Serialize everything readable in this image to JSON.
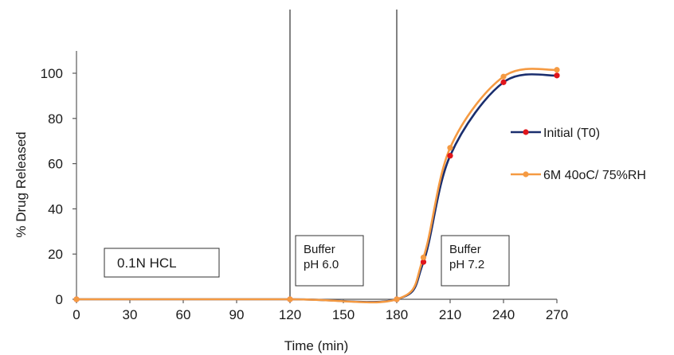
{
  "chart_data": {
    "type": "line",
    "title": "",
    "xlabel": "Time (min)",
    "ylabel": "% Drug Released",
    "xlim": [
      0,
      270
    ],
    "ylim": [
      0,
      110
    ],
    "x_ticks": [
      0,
      30,
      60,
      90,
      120,
      150,
      180,
      210,
      240,
      270
    ],
    "y_ticks": [
      0,
      20,
      40,
      60,
      80,
      100
    ],
    "grid": false,
    "legend_position": "right",
    "series": [
      {
        "name": "Initial (T0)",
        "line_color": "#1a2e6e",
        "marker_color": "#e0151b",
        "x": [
          0,
          120,
          180,
          195,
          210,
          240,
          270
        ],
        "y": [
          0,
          0,
          0,
          16.5,
          63.5,
          96,
          99
        ]
      },
      {
        "name": "6M 40oC/ 75%RH",
        "line_color": "#f59a42",
        "marker_color": "#f59a42",
        "x": [
          0,
          120,
          180,
          195,
          210,
          240,
          270
        ],
        "y": [
          0,
          0,
          0,
          18.5,
          67,
          98.5,
          101.5
        ]
      }
    ],
    "vertical_lines": [
      120,
      180
    ],
    "annotations": [
      {
        "id": "hcl",
        "lines": [
          "0.1N HCL"
        ]
      },
      {
        "id": "buf60",
        "lines": [
          "Buffer",
          "pH 6.0"
        ]
      },
      {
        "id": "buf72",
        "lines": [
          "Buffer",
          "pH 7.2"
        ]
      }
    ]
  }
}
